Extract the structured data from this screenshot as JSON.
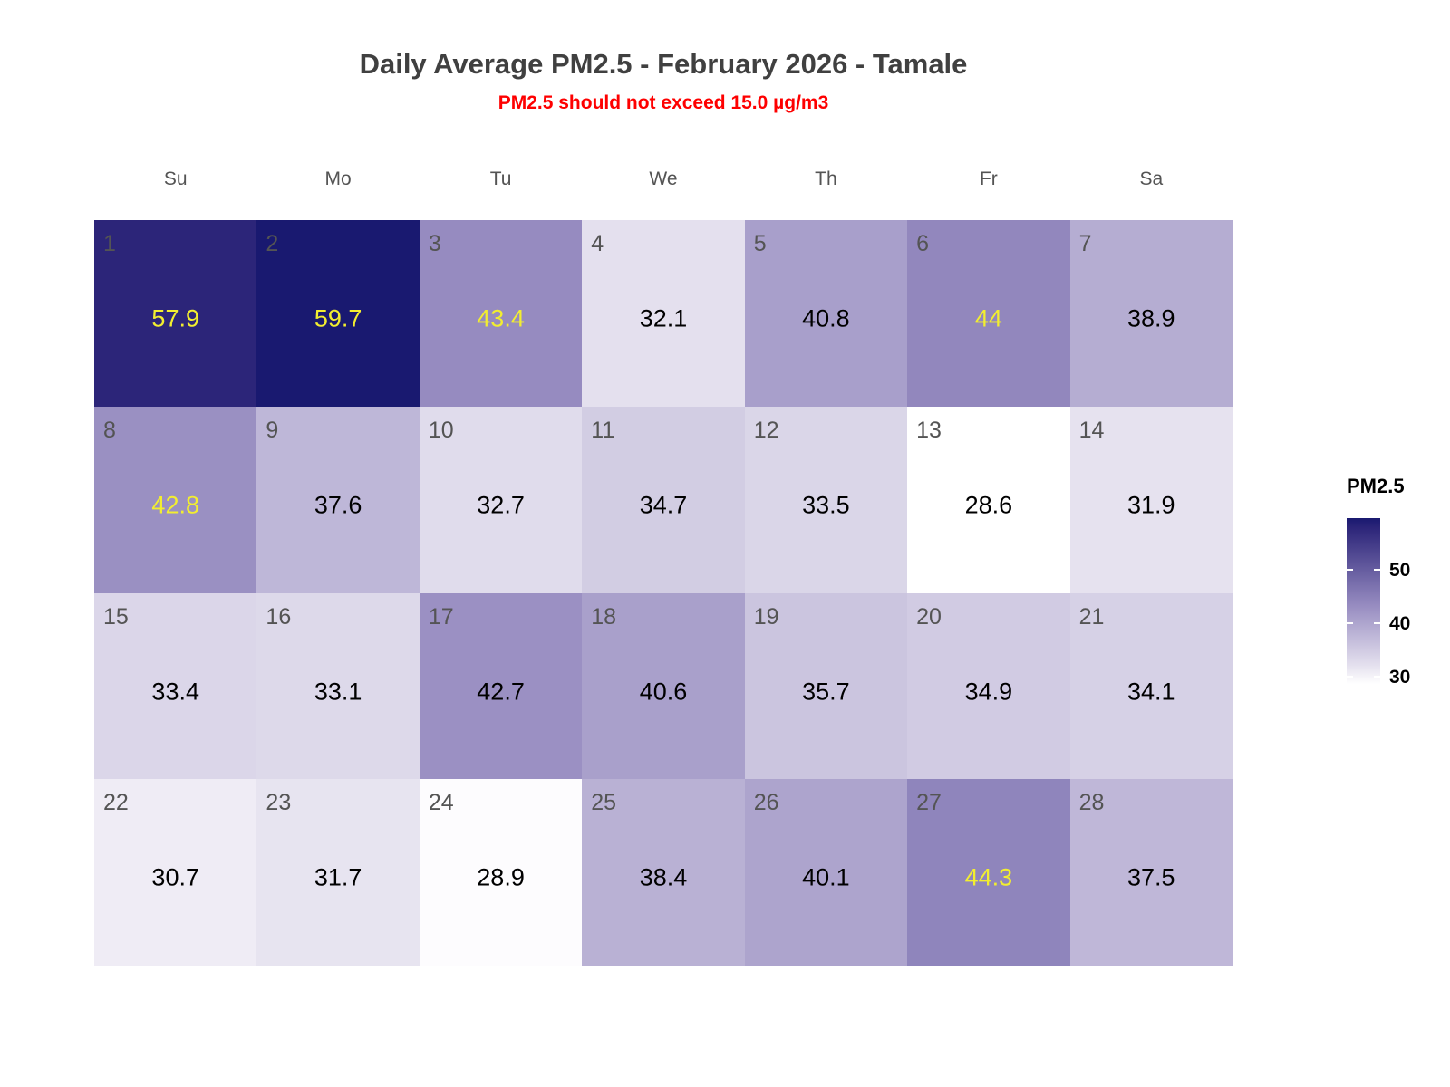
{
  "header": {
    "title": "Daily Average PM2.5 - February 2026 - Tamale",
    "subtitle": "PM2.5 should not exceed 15.0 µg/m3",
    "title_color": "#404040",
    "subtitle_color": "#fe0000"
  },
  "chart_data": {
    "type": "heatmap",
    "subtype": "calendar-month",
    "title": "Daily Average PM2.5 - February 2026 - Tamale",
    "subtitle": "PM2.5 should not exceed 15.0 µg/m3",
    "month": "February 2026",
    "location": "Tamale",
    "weekday_labels": [
      "Su",
      "Mo",
      "Tu",
      "We",
      "Th",
      "Fr",
      "Sa"
    ],
    "weeks": 4,
    "days": [
      {
        "day": 1,
        "value": 57.9
      },
      {
        "day": 2,
        "value": 59.7
      },
      {
        "day": 3,
        "value": 43.4
      },
      {
        "day": 4,
        "value": 32.1
      },
      {
        "day": 5,
        "value": 40.8
      },
      {
        "day": 6,
        "value": 44
      },
      {
        "day": 7,
        "value": 38.9
      },
      {
        "day": 8,
        "value": 42.8
      },
      {
        "day": 9,
        "value": 37.6
      },
      {
        "day": 10,
        "value": 32.7
      },
      {
        "day": 11,
        "value": 34.7
      },
      {
        "day": 12,
        "value": 33.5
      },
      {
        "day": 13,
        "value": 28.6
      },
      {
        "day": 14,
        "value": 31.9
      },
      {
        "day": 15,
        "value": 33.4
      },
      {
        "day": 16,
        "value": 33.1
      },
      {
        "day": 17,
        "value": 42.7
      },
      {
        "day": 18,
        "value": 40.6
      },
      {
        "day": 19,
        "value": 35.7
      },
      {
        "day": 20,
        "value": 34.9
      },
      {
        "day": 21,
        "value": 34.1
      },
      {
        "day": 22,
        "value": 30.7
      },
      {
        "day": 23,
        "value": 31.7
      },
      {
        "day": 24,
        "value": 28.9
      },
      {
        "day": 25,
        "value": 38.4
      },
      {
        "day": 26,
        "value": 40.1
      },
      {
        "day": 27,
        "value": 44.3
      },
      {
        "day": 28,
        "value": 37.5
      }
    ],
    "value_domain": [
      28.6,
      59.7
    ],
    "highlight_threshold": 42.75,
    "colors": {
      "scale_low": "#ffffff",
      "scale_high": "#191970",
      "highlight_text": "#f2ee30",
      "normal_text": "#000000",
      "day_number": "#545454"
    },
    "legend": {
      "title": "PM2.5",
      "ticks": [
        50,
        40,
        30
      ],
      "position": "right"
    }
  }
}
